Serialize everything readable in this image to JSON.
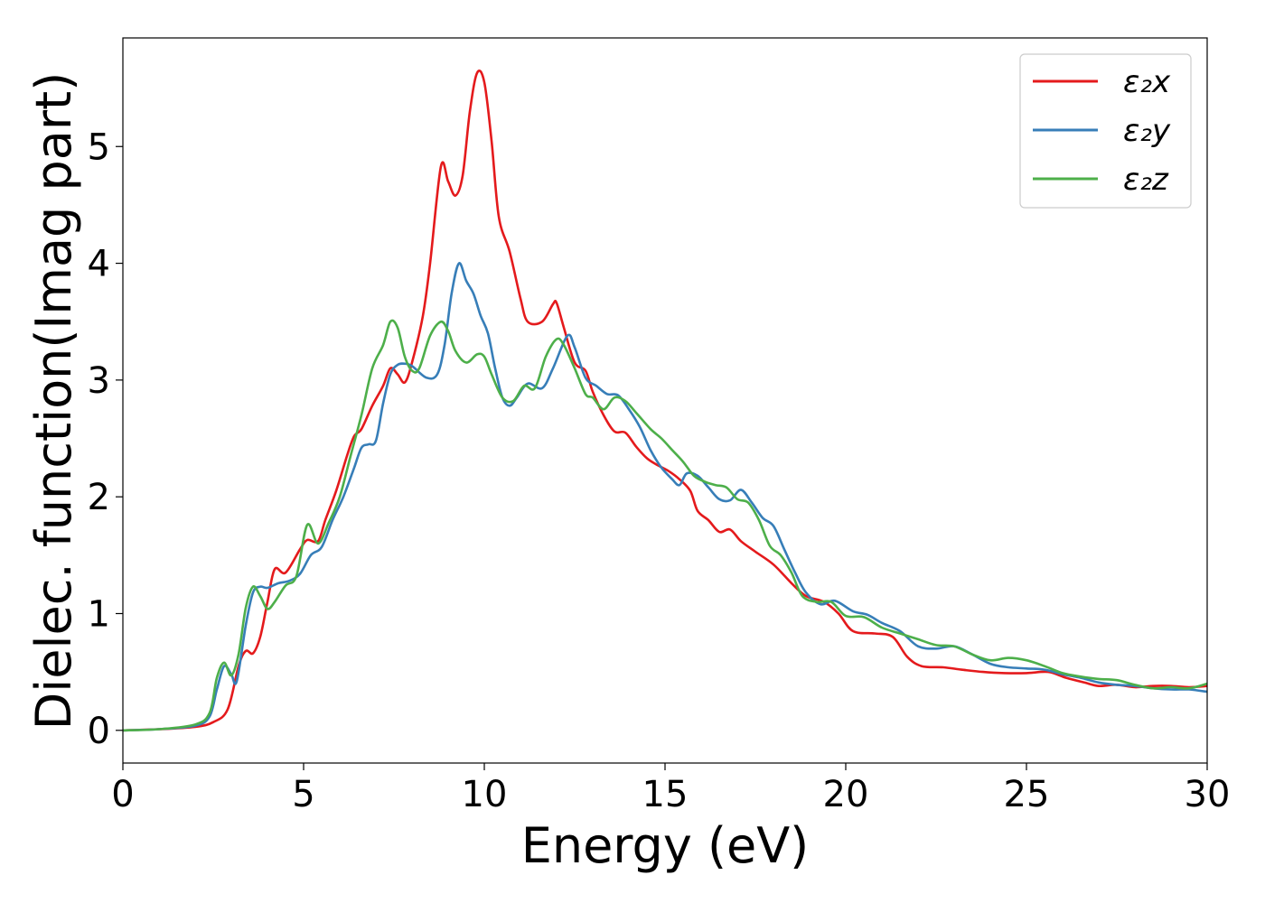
{
  "chart_data": {
    "type": "line",
    "xlabel": "Energy (eV)",
    "ylabel": "Dielec. function(Imag part)",
    "xlim": [
      0,
      30
    ],
    "ylim": [
      -0.28,
      5.93
    ],
    "xticks": [
      0,
      5,
      10,
      15,
      20,
      25,
      30
    ],
    "yticks": [
      0,
      1,
      2,
      3,
      4,
      5
    ],
    "grid": false,
    "legend_position": "top-right",
    "series": [
      {
        "name": "ε₂x",
        "color": "#e41a1c",
        "points": [
          [
            0,
            0
          ],
          [
            1,
            0.01
          ],
          [
            2,
            0.03
          ],
          [
            2.5,
            0.07
          ],
          [
            2.9,
            0.18
          ],
          [
            3.2,
            0.55
          ],
          [
            3.4,
            0.68
          ],
          [
            3.6,
            0.66
          ],
          [
            3.8,
            0.8
          ],
          [
            4.0,
            1.1
          ],
          [
            4.2,
            1.38
          ],
          [
            4.5,
            1.35
          ],
          [
            4.9,
            1.55
          ],
          [
            5.1,
            1.63
          ],
          [
            5.4,
            1.62
          ],
          [
            5.6,
            1.8
          ],
          [
            5.9,
            2.05
          ],
          [
            6.2,
            2.35
          ],
          [
            6.4,
            2.52
          ],
          [
            6.6,
            2.58
          ],
          [
            6.9,
            2.78
          ],
          [
            7.2,
            2.95
          ],
          [
            7.4,
            3.1
          ],
          [
            7.6,
            3.05
          ],
          [
            7.8,
            2.98
          ],
          [
            8.0,
            3.15
          ],
          [
            8.3,
            3.55
          ],
          [
            8.5,
            4.0
          ],
          [
            8.8,
            4.83
          ],
          [
            9.0,
            4.7
          ],
          [
            9.2,
            4.58
          ],
          [
            9.4,
            4.75
          ],
          [
            9.6,
            5.3
          ],
          [
            9.8,
            5.63
          ],
          [
            10.0,
            5.55
          ],
          [
            10.2,
            5.05
          ],
          [
            10.4,
            4.4
          ],
          [
            10.7,
            4.1
          ],
          [
            11.0,
            3.7
          ],
          [
            11.2,
            3.5
          ],
          [
            11.6,
            3.5
          ],
          [
            11.9,
            3.65
          ],
          [
            12.0,
            3.66
          ],
          [
            12.2,
            3.45
          ],
          [
            12.5,
            3.15
          ],
          [
            12.8,
            3.08
          ],
          [
            13.0,
            2.9
          ],
          [
            13.3,
            2.7
          ],
          [
            13.6,
            2.56
          ],
          [
            13.9,
            2.55
          ],
          [
            14.2,
            2.43
          ],
          [
            14.5,
            2.33
          ],
          [
            14.8,
            2.27
          ],
          [
            15.1,
            2.22
          ],
          [
            15.4,
            2.15
          ],
          [
            15.7,
            2.05
          ],
          [
            15.9,
            1.88
          ],
          [
            16.2,
            1.8
          ],
          [
            16.5,
            1.7
          ],
          [
            16.8,
            1.72
          ],
          [
            17.1,
            1.62
          ],
          [
            17.5,
            1.53
          ],
          [
            18.0,
            1.42
          ],
          [
            18.5,
            1.26
          ],
          [
            18.9,
            1.15
          ],
          [
            19.4,
            1.1
          ],
          [
            19.8,
            1.0
          ],
          [
            20.2,
            0.85
          ],
          [
            20.8,
            0.83
          ],
          [
            21.3,
            0.8
          ],
          [
            21.7,
            0.63
          ],
          [
            22.1,
            0.55
          ],
          [
            22.7,
            0.54
          ],
          [
            23.2,
            0.52
          ],
          [
            23.8,
            0.5
          ],
          [
            24.4,
            0.49
          ],
          [
            25.0,
            0.49
          ],
          [
            25.6,
            0.5
          ],
          [
            26.1,
            0.45
          ],
          [
            26.6,
            0.41
          ],
          [
            27.0,
            0.38
          ],
          [
            27.5,
            0.39
          ],
          [
            28.0,
            0.37
          ],
          [
            28.5,
            0.38
          ],
          [
            29.0,
            0.38
          ],
          [
            29.5,
            0.37
          ],
          [
            30.0,
            0.38
          ]
        ]
      },
      {
        "name": "ε₂y",
        "color": "#377eb8",
        "points": [
          [
            0,
            0
          ],
          [
            1,
            0.01
          ],
          [
            2,
            0.04
          ],
          [
            2.4,
            0.12
          ],
          [
            2.6,
            0.35
          ],
          [
            2.8,
            0.55
          ],
          [
            3.0,
            0.48
          ],
          [
            3.15,
            0.42
          ],
          [
            3.4,
            0.9
          ],
          [
            3.6,
            1.18
          ],
          [
            3.8,
            1.23
          ],
          [
            4.0,
            1.22
          ],
          [
            4.3,
            1.26
          ],
          [
            4.6,
            1.28
          ],
          [
            4.9,
            1.34
          ],
          [
            5.2,
            1.5
          ],
          [
            5.5,
            1.57
          ],
          [
            5.8,
            1.8
          ],
          [
            6.1,
            2.0
          ],
          [
            6.4,
            2.25
          ],
          [
            6.6,
            2.42
          ],
          [
            6.8,
            2.45
          ],
          [
            7.0,
            2.48
          ],
          [
            7.2,
            2.8
          ],
          [
            7.4,
            3.05
          ],
          [
            7.6,
            3.13
          ],
          [
            7.8,
            3.14
          ],
          [
            8.0,
            3.12
          ],
          [
            8.4,
            3.02
          ],
          [
            8.7,
            3.05
          ],
          [
            8.9,
            3.3
          ],
          [
            9.1,
            3.75
          ],
          [
            9.3,
            4.0
          ],
          [
            9.5,
            3.85
          ],
          [
            9.7,
            3.74
          ],
          [
            9.9,
            3.55
          ],
          [
            10.1,
            3.4
          ],
          [
            10.3,
            3.1
          ],
          [
            10.5,
            2.85
          ],
          [
            10.7,
            2.78
          ],
          [
            10.9,
            2.85
          ],
          [
            11.2,
            2.97
          ],
          [
            11.6,
            2.93
          ],
          [
            11.9,
            3.1
          ],
          [
            12.3,
            3.38
          ],
          [
            12.5,
            3.28
          ],
          [
            12.8,
            3.02
          ],
          [
            13.1,
            2.95
          ],
          [
            13.4,
            2.88
          ],
          [
            13.7,
            2.87
          ],
          [
            14.0,
            2.75
          ],
          [
            14.3,
            2.6
          ],
          [
            14.6,
            2.4
          ],
          [
            14.9,
            2.25
          ],
          [
            15.2,
            2.15
          ],
          [
            15.4,
            2.1
          ],
          [
            15.6,
            2.2
          ],
          [
            15.9,
            2.18
          ],
          [
            16.2,
            2.08
          ],
          [
            16.5,
            1.98
          ],
          [
            16.8,
            1.97
          ],
          [
            17.1,
            2.06
          ],
          [
            17.4,
            1.95
          ],
          [
            17.7,
            1.82
          ],
          [
            18.0,
            1.75
          ],
          [
            18.3,
            1.55
          ],
          [
            18.6,
            1.35
          ],
          [
            18.9,
            1.18
          ],
          [
            19.3,
            1.08
          ],
          [
            19.7,
            1.11
          ],
          [
            20.2,
            1.02
          ],
          [
            20.6,
            0.99
          ],
          [
            21.0,
            0.92
          ],
          [
            21.5,
            0.85
          ],
          [
            22.0,
            0.72
          ],
          [
            22.5,
            0.7
          ],
          [
            23.0,
            0.72
          ],
          [
            23.5,
            0.65
          ],
          [
            24.0,
            0.57
          ],
          [
            24.5,
            0.54
          ],
          [
            25.0,
            0.53
          ],
          [
            25.5,
            0.52
          ],
          [
            26.0,
            0.48
          ],
          [
            26.5,
            0.45
          ],
          [
            27.0,
            0.41
          ],
          [
            27.5,
            0.39
          ],
          [
            28.0,
            0.38
          ],
          [
            28.5,
            0.36
          ],
          [
            29.0,
            0.35
          ],
          [
            29.5,
            0.35
          ],
          [
            30.0,
            0.33
          ]
        ]
      },
      {
        "name": "ε₂z",
        "color": "#4daf4a",
        "points": [
          [
            0,
            0
          ],
          [
            1,
            0.01
          ],
          [
            2,
            0.05
          ],
          [
            2.4,
            0.15
          ],
          [
            2.6,
            0.45
          ],
          [
            2.8,
            0.58
          ],
          [
            3.0,
            0.47
          ],
          [
            3.2,
            0.65
          ],
          [
            3.4,
            1.05
          ],
          [
            3.6,
            1.23
          ],
          [
            3.8,
            1.15
          ],
          [
            4.0,
            1.04
          ],
          [
            4.2,
            1.1
          ],
          [
            4.5,
            1.24
          ],
          [
            4.8,
            1.32
          ],
          [
            5.1,
            1.76
          ],
          [
            5.4,
            1.6
          ],
          [
            5.7,
            1.78
          ],
          [
            6.0,
            2.0
          ],
          [
            6.3,
            2.35
          ],
          [
            6.6,
            2.7
          ],
          [
            6.9,
            3.1
          ],
          [
            7.2,
            3.3
          ],
          [
            7.4,
            3.5
          ],
          [
            7.6,
            3.45
          ],
          [
            7.8,
            3.2
          ],
          [
            8.0,
            3.08
          ],
          [
            8.2,
            3.1
          ],
          [
            8.5,
            3.38
          ],
          [
            8.8,
            3.5
          ],
          [
            9.0,
            3.42
          ],
          [
            9.2,
            3.25
          ],
          [
            9.5,
            3.15
          ],
          [
            9.8,
            3.22
          ],
          [
            10.0,
            3.2
          ],
          [
            10.2,
            3.05
          ],
          [
            10.5,
            2.85
          ],
          [
            10.8,
            2.82
          ],
          [
            11.1,
            2.95
          ],
          [
            11.4,
            2.93
          ],
          [
            11.7,
            3.2
          ],
          [
            12.0,
            3.35
          ],
          [
            12.2,
            3.3
          ],
          [
            12.5,
            3.1
          ],
          [
            12.8,
            2.88
          ],
          [
            13.0,
            2.85
          ],
          [
            13.3,
            2.75
          ],
          [
            13.6,
            2.85
          ],
          [
            13.9,
            2.82
          ],
          [
            14.2,
            2.72
          ],
          [
            14.6,
            2.58
          ],
          [
            14.9,
            2.5
          ],
          [
            15.2,
            2.4
          ],
          [
            15.5,
            2.3
          ],
          [
            15.8,
            2.18
          ],
          [
            16.1,
            2.13
          ],
          [
            16.4,
            2.1
          ],
          [
            16.7,
            2.08
          ],
          [
            17.0,
            1.98
          ],
          [
            17.3,
            1.95
          ],
          [
            17.6,
            1.8
          ],
          [
            17.9,
            1.58
          ],
          [
            18.2,
            1.5
          ],
          [
            18.5,
            1.35
          ],
          [
            18.8,
            1.15
          ],
          [
            19.2,
            1.1
          ],
          [
            19.6,
            1.1
          ],
          [
            20.0,
            0.98
          ],
          [
            20.5,
            0.97
          ],
          [
            21.0,
            0.88
          ],
          [
            21.5,
            0.83
          ],
          [
            22.0,
            0.78
          ],
          [
            22.5,
            0.73
          ],
          [
            23.0,
            0.72
          ],
          [
            23.5,
            0.65
          ],
          [
            24.0,
            0.6
          ],
          [
            24.5,
            0.62
          ],
          [
            25.0,
            0.6
          ],
          [
            25.5,
            0.55
          ],
          [
            26.0,
            0.49
          ],
          [
            26.5,
            0.46
          ],
          [
            27.0,
            0.44
          ],
          [
            27.5,
            0.43
          ],
          [
            28.0,
            0.39
          ],
          [
            28.5,
            0.36
          ],
          [
            29.0,
            0.37
          ],
          [
            29.5,
            0.36
          ],
          [
            30.0,
            0.4
          ]
        ]
      }
    ]
  }
}
